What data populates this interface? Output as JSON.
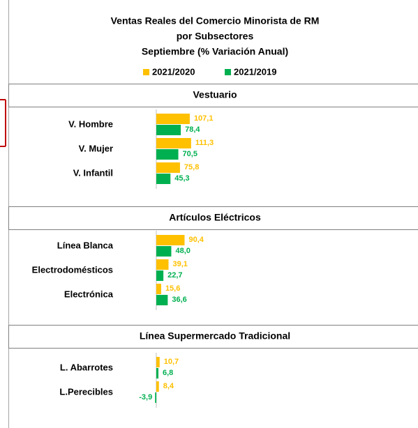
{
  "title": [
    "Ventas Reales del Comercio Minorista de RM",
    "por Subsectores",
    "Septiembre (% Variación Anual)"
  ],
  "legend": [
    {
      "name": "2021/2020",
      "color": "#ffc000"
    },
    {
      "name": "2021/2019",
      "color": "#00b050"
    }
  ],
  "chart_data": [
    {
      "type": "bar",
      "orientation": "horizontal",
      "title": "Vestuario",
      "xlim": [
        -20,
        750
      ],
      "categories": [
        "V. Hombre",
        "V. Mujer",
        "V. Infantil"
      ],
      "series": [
        {
          "values": [
            107.1,
            111.3,
            75.8
          ],
          "value_labels": [
            "107,1",
            "111,3",
            "75,8"
          ]
        },
        {
          "values": [
            78.4,
            70.5,
            45.3
          ],
          "value_labels": [
            "78,4",
            "70,5",
            "45,3"
          ]
        }
      ]
    },
    {
      "type": "bar",
      "orientation": "horizontal",
      "title": "Artículos Eléctricos",
      "xlim": [
        -20,
        750
      ],
      "categories": [
        "Línea Blanca",
        "Electrodomésticos",
        "Electrónica"
      ],
      "series": [
        {
          "values": [
            90.4,
            39.1,
            15.6
          ],
          "value_labels": [
            "90,4",
            "39,1",
            "15,6"
          ]
        },
        {
          "values": [
            48.0,
            22.7,
            36.6
          ],
          "value_labels": [
            "48,0",
            "22,7",
            "36,6"
          ]
        }
      ]
    },
    {
      "type": "bar",
      "orientation": "horizontal",
      "title": "Línea Supermercado Tradicional",
      "xlim": [
        -20,
        750
      ],
      "categories": [
        "L. Abarrotes",
        "L.Perecibles"
      ],
      "series": [
        {
          "values": [
            10.7,
            8.4
          ],
          "value_labels": [
            "10,7",
            "8,4"
          ]
        },
        {
          "values": [
            6.8,
            -3.9
          ],
          "value_labels": [
            "6,8",
            "-3,9"
          ]
        }
      ]
    }
  ]
}
